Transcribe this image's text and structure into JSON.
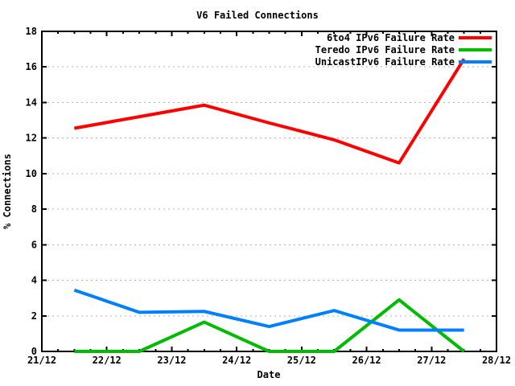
{
  "chart_data": {
    "type": "line",
    "title": "V6 Failed Connections",
    "xlabel": "Date",
    "ylabel": "% Connections",
    "ylim": [
      0,
      18
    ],
    "xlim_days": [
      0,
      7
    ],
    "x_tick_labels": [
      "21/12",
      "22/12",
      "23/12",
      "24/12",
      "25/12",
      "26/12",
      "27/12",
      "28/12"
    ],
    "y_tick_values": [
      0,
      2,
      4,
      6,
      8,
      10,
      12,
      14,
      16,
      18
    ],
    "grid": "horizontal dashed gridlines at each labeled y tick",
    "legend_position": "top-right inside plot area",
    "x": [
      0.5,
      1.5,
      2.5,
      3.5,
      4.5,
      5.5,
      6.5
    ],
    "x_note": "days after 21/12; samples plotted at midday of each date",
    "series": [
      {
        "name": "6to4 IPv6 Failure Rate",
        "color": "#ff0000",
        "values": [
          12.55,
          13.2,
          13.85,
          12.85,
          11.9,
          10.6,
          16.45
        ]
      },
      {
        "name": "Teredo IPv6 Failure Rate",
        "color": "#00bb00",
        "values": [
          0,
          0,
          1.65,
          0,
          0,
          2.9,
          0
        ]
      },
      {
        "name": "UnicastIPv6 Failure Rate",
        "color": "#0080ff",
        "values": [
          3.45,
          2.2,
          2.25,
          1.4,
          2.3,
          1.2,
          1.2
        ]
      }
    ],
    "colors": {
      "axis": "#000000",
      "grid": "#b0b0b0",
      "background": "#ffffff",
      "text": "#000000"
    }
  }
}
